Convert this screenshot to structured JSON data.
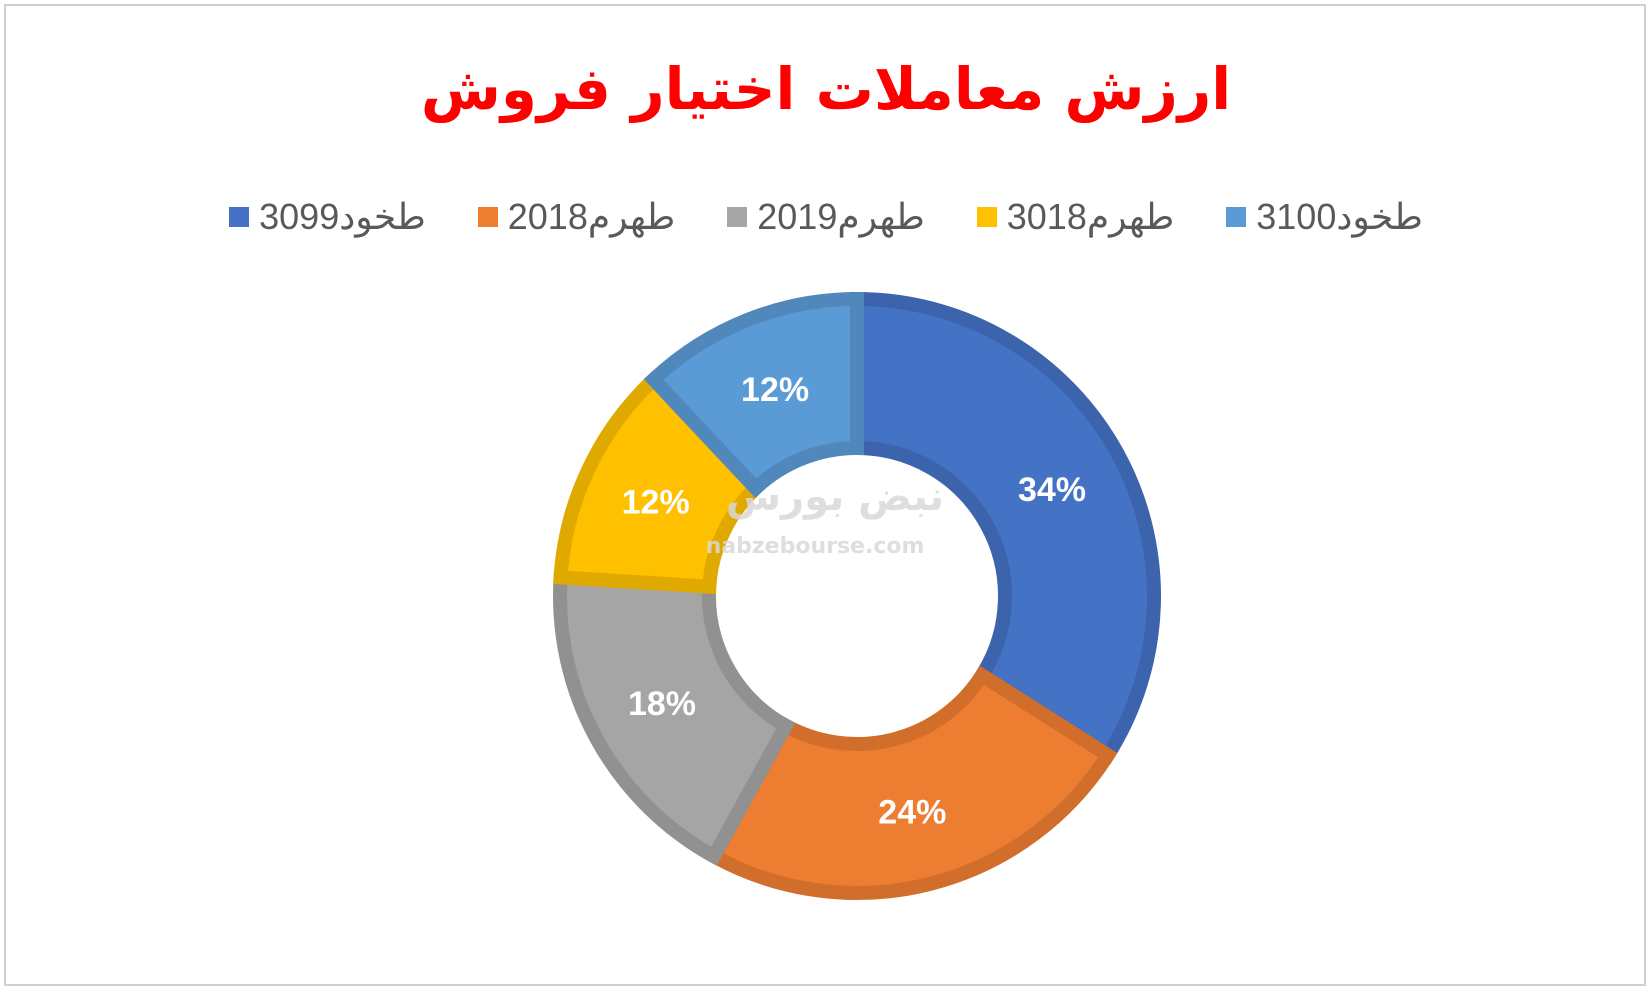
{
  "chart_data": {
    "type": "pie",
    "title": "ارزش معاملات اختیار فروش",
    "legend_position": "top",
    "labels": [
      "طخود3099",
      "طهرم2018",
      "طهرم2019",
      "طهرم3018",
      "طخود3100"
    ],
    "values": [
      34,
      24,
      18,
      12,
      12
    ],
    "value_labels": [
      "34%",
      "24%",
      "18%",
      "12%",
      "12%"
    ],
    "colors": [
      "#4472C4",
      "#ED7D31",
      "#A5A5A5",
      "#FFC000",
      "#5B9BD5"
    ],
    "donut": true
  },
  "watermark": {
    "brand": "نبض بورس",
    "url": "nabzebourse.com"
  }
}
